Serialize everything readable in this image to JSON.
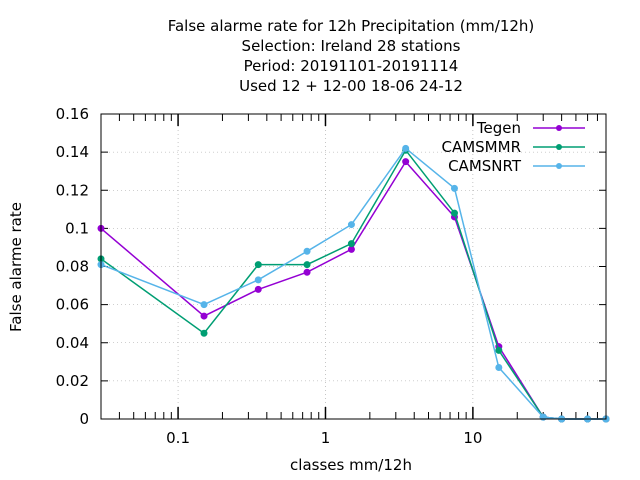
{
  "chart_data": {
    "type": "line",
    "title_lines": [
      "False alarme rate  for 12h Precipitation (mm/12h)",
      "Selection: Ireland      28 stations",
      "Period: 20191101-20191114",
      "Used  12 + 12-00 18-06 24-12"
    ],
    "xlabel": "classes mm/12h",
    "ylabel": "False alarme rate",
    "xscale": "log",
    "xlim": [
      0.03,
      80
    ],
    "ylim": [
      0,
      0.16
    ],
    "xticks": [
      {
        "value": 0.1,
        "label": "0.1"
      },
      {
        "value": 1,
        "label": "1"
      },
      {
        "value": 10,
        "label": "10"
      }
    ],
    "yticks": [
      {
        "value": 0,
        "label": "0"
      },
      {
        "value": 0.02,
        "label": "0.02"
      },
      {
        "value": 0.04,
        "label": "0.04"
      },
      {
        "value": 0.06,
        "label": "0.06"
      },
      {
        "value": 0.08,
        "label": "0.08"
      },
      {
        "value": 0.1,
        "label": "0.1"
      },
      {
        "value": 0.12,
        "label": "0.12"
      },
      {
        "value": 0.14,
        "label": "0.14"
      },
      {
        "value": 0.16,
        "label": "0.16"
      }
    ],
    "grid": true,
    "legend_position": "top-right",
    "series": [
      {
        "name": "Tegen",
        "color": "#9400d3",
        "points": [
          [
            0.03,
            0.1
          ],
          [
            0.15,
            0.054
          ],
          [
            0.35,
            0.068
          ],
          [
            0.75,
            0.077
          ],
          [
            1.5,
            0.089
          ],
          [
            3.5,
            0.135
          ],
          [
            7.5,
            0.106
          ],
          [
            15,
            0.038
          ],
          [
            30,
            0.001
          ],
          [
            40,
            0.0
          ],
          [
            60,
            0.0
          ],
          [
            80,
            0.0
          ]
        ]
      },
      {
        "name": "CAMSMMR",
        "color": "#009e73",
        "points": [
          [
            0.03,
            0.084
          ],
          [
            0.15,
            0.045
          ],
          [
            0.35,
            0.081
          ],
          [
            0.75,
            0.081
          ],
          [
            1.5,
            0.092
          ],
          [
            3.5,
            0.141
          ],
          [
            7.5,
            0.108
          ],
          [
            15,
            0.036
          ],
          [
            30,
            0.001
          ],
          [
            40,
            0.0
          ],
          [
            60,
            0.0
          ],
          [
            80,
            0.0
          ]
        ]
      },
      {
        "name": "CAMSNRT",
        "color": "#56b4e9",
        "points": [
          [
            0.03,
            0.081
          ],
          [
            0.15,
            0.06
          ],
          [
            0.35,
            0.073
          ],
          [
            0.75,
            0.088
          ],
          [
            1.5,
            0.102
          ],
          [
            3.5,
            0.142
          ],
          [
            7.5,
            0.121
          ],
          [
            15,
            0.027
          ],
          [
            30,
            0.001
          ],
          [
            40,
            0.0
          ],
          [
            60,
            0.0
          ],
          [
            80,
            0.0
          ]
        ]
      }
    ]
  }
}
